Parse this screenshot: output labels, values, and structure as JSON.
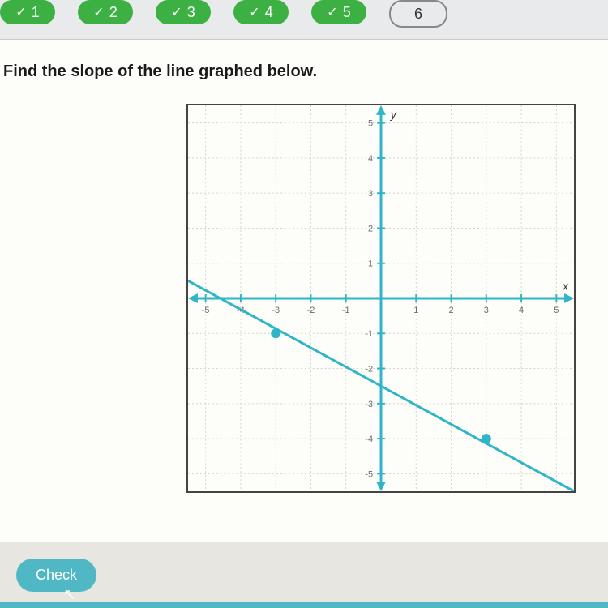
{
  "nav": {
    "tabs": [
      {
        "num": "1",
        "state": "completed"
      },
      {
        "num": "2",
        "state": "completed"
      },
      {
        "num": "3",
        "state": "completed"
      },
      {
        "num": "4",
        "state": "completed"
      },
      {
        "num": "5",
        "state": "completed"
      },
      {
        "num": "6",
        "state": "current"
      }
    ],
    "completed_bg": "#3cb043",
    "current_border": "#888"
  },
  "question": {
    "text": "Find the slope of the line graphed below."
  },
  "graph": {
    "type": "line",
    "xlim": [
      -5.5,
      5.5
    ],
    "ylim": [
      -5.5,
      5.5
    ],
    "xtick_step": 1,
    "ytick_step": 1,
    "x_axis_label": "x",
    "y_axis_label": "y",
    "grid_color": "#d6d4c8",
    "grid_dash": "2,3",
    "axis_color": "#2fb5c7",
    "axis_width": 3,
    "tick_font_size": 11,
    "tick_color": "#6b6b6b",
    "background_color": "#fdfdfa",
    "border_color": "#444",
    "line": {
      "points_extent": [
        [
          -5.5,
          0.5
        ],
        [
          5.5,
          -5.5
        ]
      ],
      "color": "#2fb5c7",
      "width": 3
    },
    "marked_points": [
      {
        "x": -3,
        "y": -1
      },
      {
        "x": 3,
        "y": -4
      }
    ],
    "marker_color": "#2fb5c7",
    "marker_radius": 6,
    "x_tick_labels": [
      "-5",
      "-4",
      "-3",
      "-2",
      "-1",
      "1",
      "2",
      "3",
      "4",
      "5"
    ],
    "y_tick_labels_pos": [
      "1",
      "2",
      "3",
      "4",
      "5"
    ],
    "y_tick_labels_neg": [
      "-1",
      "-2",
      "-3",
      "-4",
      "-5"
    ]
  },
  "buttons": {
    "check": "Check"
  },
  "colors": {
    "page_bg": "#e8e6e1",
    "content_bg": "#fdfdfa",
    "check_btn_bg": "#4fb8c4"
  }
}
